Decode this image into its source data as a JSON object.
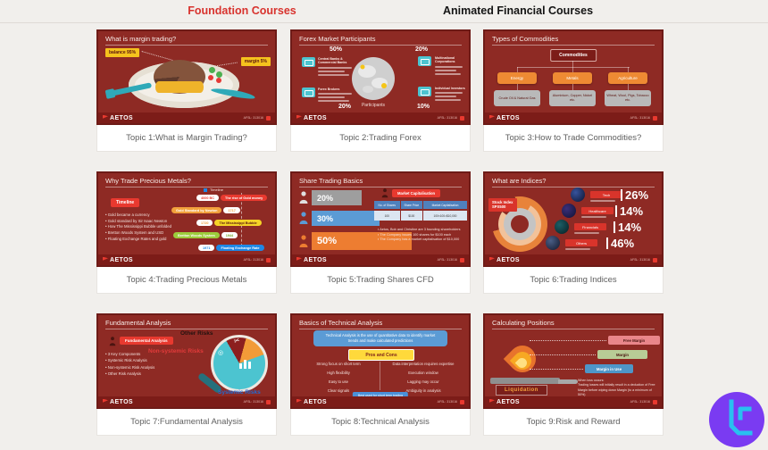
{
  "header": {
    "tab_foundation": "Foundation Courses",
    "tab_animated": "Animated Financial Courses"
  },
  "brand": {
    "name": "AETOS",
    "afsl": "AFSL: 313016"
  },
  "colors": {
    "accent_red": "#d8332e",
    "slide_bg": "#8e2a24",
    "slide_footer": "#7c1c18",
    "logo_purple": "#7a3bf2",
    "logo_cyan": "#29c0f0"
  },
  "cards": [
    {
      "caption": "Topic 1:What is Margin Trading?",
      "title": "What is margin trading?",
      "balance_label": "balance 95%",
      "margin_label": "margin 5%"
    },
    {
      "caption": "Topic 2:Trading Forex",
      "title": "Forex Market Participants",
      "center_label": "Participants",
      "pct_top_left": "50%",
      "pct_top_right": "20%",
      "pct_bottom_left": "20%",
      "pct_bottom_right": "10%",
      "group_top_left": "Central Banks & Commercial Banks",
      "group_bottom_left": "Forex Brokers",
      "group_top_right": "Multinational Corporations",
      "group_bottom_right": "Individual Investors"
    },
    {
      "caption": "Topic 3:How to Trade Commodities?",
      "title": "Types of Commodities",
      "root": "Commodities",
      "categories": [
        "Energy",
        "Metals",
        "Agriculture"
      ],
      "examples": [
        "Crude Oil & Natural Gas",
        "Aluminium, Copper, Nickel etc.",
        "Wheat, Wool, Pigs, Tobacco etc."
      ]
    },
    {
      "caption": "Topic 4:Trading Precious Metals",
      "title": "Why Trade Precious Metals?",
      "tag": "Timeline",
      "legend": "Timeline",
      "bullets": [
        "Gold became a currency",
        "Gold standard by Sir Isaac Newton",
        "How The Mississippi Bubble unfolded",
        "Bretton Woods System and USD",
        "Floating Exchange Rates and gold"
      ],
      "timeline": [
        {
          "year": "4000 BC",
          "label": "The rise of Gold money",
          "color": "#e8392f"
        },
        {
          "year": "1717",
          "label": "Gold Standard by Newton",
          "color": "#f2a13c"
        },
        {
          "year": "1720",
          "label": "The Mississippi Bubble",
          "color": "#f5d327"
        },
        {
          "year": "1944",
          "label": "Bretton Woods System",
          "color": "#9ccc3c"
        },
        {
          "year": "1971",
          "label": "Floating Exchange Rate",
          "color": "#1e88e5"
        }
      ]
    },
    {
      "caption": "Topic 5:Trading Shares CFD",
      "title": "Share Trading Basics",
      "bars": [
        {
          "pct": "20%",
          "color": "#9e9e9e"
        },
        {
          "pct": "30%",
          "color": "#5b9bd5"
        },
        {
          "pct": "50%",
          "color": "#ed7d31"
        }
      ],
      "cap_tag": "Market Capitalisation",
      "table": {
        "headers": [
          "No. of Shares",
          "Share Price",
          "Market Capitalisation"
        ],
        "row": [
          "100",
          "$100",
          "100×100=$10,000"
        ]
      },
      "bullets": [
        "Aetos, Bob and Christine are 3 founding shareholders",
        "The Company issues 100 shares for $100 each",
        "The Company has a market capitalisation of $10,000"
      ]
    },
    {
      "caption": "Topic 6:Trading Indices",
      "title": "What are Indices?",
      "tag_line1": "Stock Index",
      "tag_line2": "SPX500",
      "sectors": [
        {
          "label": "Tech",
          "pct": "26%"
        },
        {
          "label": "Healthcare",
          "pct": "14%"
        },
        {
          "label": "Financials",
          "pct": "14%"
        },
        {
          "label": "Others",
          "pct": "46%"
        }
      ]
    },
    {
      "caption": "Topic 7:Fundamental Analysis",
      "title": "Fundamental Analysis",
      "tag": "Fundamental Analysis",
      "bullets": [
        "3 Key Components",
        "Systemic Risk Analysis",
        "Non-systemic Risk Analysis",
        "Other Risk Analysis"
      ],
      "risk_other": "Other Risks",
      "risk_nonsystemic": "Non-systemic Risks",
      "risk_systemic": "Systemic Risks"
    },
    {
      "caption": "Topic 8:Technical Analysis",
      "title": "Basics of Technical Analysis",
      "intro": "Technical Analysis is the use of quantitative data to identify market trends and make calculated predictions",
      "pros_cons": "Pros and Cons",
      "pros": [
        "Strong focus on short term",
        "High flexibility",
        "Easy to use",
        "Clear signals"
      ],
      "cons": [
        "Data interpretation requires expertise",
        "Execution window",
        "Lagging may occur",
        "Ambiguity in analysis"
      ],
      "footnote": "Best used for short term trading"
    },
    {
      "caption": "Topic 9:Risk and Reward",
      "title": "Calculating Positions",
      "liquidation": "Liquidation",
      "levels": [
        {
          "label": "Free Margin",
          "color": "#e9868a"
        },
        {
          "label": "Margin",
          "color": "#b8cc96"
        },
        {
          "label": "Margin in Use",
          "color": "#4e96c8"
        }
      ],
      "notes": [
        "When loss occurs:",
        "Trading losses will initially result in a deduction of Free",
        "Margin before wiping down Margin (to a minimum of 50%)"
      ]
    }
  ]
}
